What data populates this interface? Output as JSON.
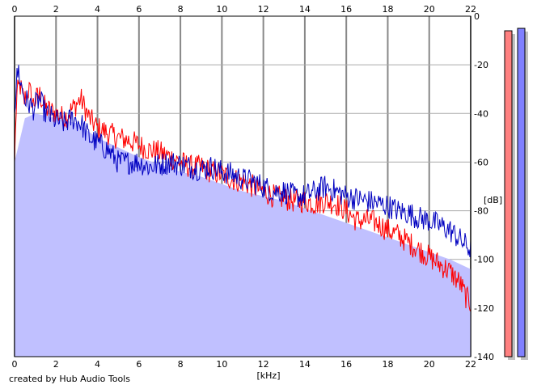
{
  "chart_data": {
    "type": "area",
    "xlabel": "[kHz]",
    "ylabel": "[dB]",
    "xlim": [
      0,
      22
    ],
    "ylim": [
      -140,
      0
    ],
    "x_ticks": [
      0,
      2,
      4,
      6,
      8,
      10,
      12,
      14,
      16,
      18,
      20,
      22
    ],
    "y_ticks": [
      0,
      -20,
      -40,
      -60,
      -80,
      -100,
      -120,
      -140
    ],
    "grid": true,
    "fill_color": "#c0c0ff",
    "series": [
      {
        "color": "#ff0000",
        "points": [
          [
            0,
            -60
          ],
          [
            0.1,
            -33
          ],
          [
            0.25,
            -28
          ],
          [
            0.45,
            -35
          ],
          [
            0.7,
            -30
          ],
          [
            0.9,
            -36
          ],
          [
            1.2,
            -32
          ],
          [
            1.5,
            -38
          ],
          [
            2,
            -40
          ],
          [
            2.4,
            -42
          ],
          [
            2.8,
            -38
          ],
          [
            3.2,
            -34
          ],
          [
            3.6,
            -42
          ],
          [
            4,
            -46
          ],
          [
            4.5,
            -48
          ],
          [
            5,
            -50
          ],
          [
            5.5,
            -51
          ],
          [
            6,
            -53
          ],
          [
            6.5,
            -55
          ],
          [
            7,
            -56
          ],
          [
            7.5,
            -58
          ],
          [
            8,
            -60
          ],
          [
            8.5,
            -62
          ],
          [
            9,
            -62
          ],
          [
            9.5,
            -64
          ],
          [
            10,
            -65
          ],
          [
            10.5,
            -67
          ],
          [
            11,
            -68
          ],
          [
            11.5,
            -70
          ],
          [
            12,
            -72
          ],
          [
            12.5,
            -74
          ],
          [
            13,
            -75
          ],
          [
            13.5,
            -76
          ],
          [
            14,
            -76
          ],
          [
            14.5,
            -77
          ],
          [
            15,
            -76
          ],
          [
            15.5,
            -77
          ],
          [
            16,
            -80
          ],
          [
            16.5,
            -84
          ],
          [
            17,
            -84
          ],
          [
            17.5,
            -85
          ],
          [
            18,
            -88
          ],
          [
            18.5,
            -90
          ],
          [
            19,
            -93
          ],
          [
            19.5,
            -96
          ],
          [
            20,
            -99
          ],
          [
            20.5,
            -102
          ],
          [
            21,
            -105
          ],
          [
            21.5,
            -110
          ],
          [
            21.8,
            -116
          ],
          [
            22,
            -118
          ]
        ]
      },
      {
        "color": "#0000c0",
        "points": [
          [
            0,
            -40
          ],
          [
            0.1,
            -26
          ],
          [
            0.2,
            -22
          ],
          [
            0.3,
            -28
          ],
          [
            0.5,
            -34
          ],
          [
            0.7,
            -36
          ],
          [
            0.9,
            -38
          ],
          [
            1.2,
            -34
          ],
          [
            1.5,
            -40
          ],
          [
            2,
            -43
          ],
          [
            2.4,
            -44
          ],
          [
            2.8,
            -42
          ],
          [
            3.2,
            -44
          ],
          [
            3.6,
            -50
          ],
          [
            4,
            -52
          ],
          [
            4.5,
            -55
          ],
          [
            5,
            -60
          ],
          [
            5.5,
            -60
          ],
          [
            6,
            -60
          ],
          [
            6.5,
            -62
          ],
          [
            7,
            -61
          ],
          [
            7.5,
            -60
          ],
          [
            8,
            -61
          ],
          [
            8.5,
            -62
          ],
          [
            9,
            -63
          ],
          [
            9.5,
            -62
          ],
          [
            10,
            -64
          ],
          [
            10.5,
            -65
          ],
          [
            11,
            -67
          ],
          [
            11.5,
            -68
          ],
          [
            12,
            -70
          ],
          [
            12.5,
            -72
          ],
          [
            13,
            -72
          ],
          [
            13.5,
            -74
          ],
          [
            14,
            -74
          ],
          [
            14.5,
            -72
          ],
          [
            15,
            -70
          ],
          [
            15.5,
            -72
          ],
          [
            16,
            -74
          ],
          [
            16.5,
            -75
          ],
          [
            17,
            -76
          ],
          [
            17.5,
            -77
          ],
          [
            18,
            -78
          ],
          [
            18.5,
            -80
          ],
          [
            19,
            -81
          ],
          [
            19.5,
            -83
          ],
          [
            20,
            -84
          ],
          [
            20.5,
            -86
          ],
          [
            21,
            -88
          ],
          [
            21.5,
            -92
          ],
          [
            22,
            -96
          ]
        ]
      }
    ],
    "fill_outline": [
      [
        0,
        -60
      ],
      [
        0.5,
        -42
      ],
      [
        1,
        -40
      ],
      [
        2,
        -42
      ],
      [
        3,
        -44
      ],
      [
        4,
        -50
      ],
      [
        5,
        -54
      ],
      [
        6,
        -58
      ],
      [
        7,
        -61
      ],
      [
        8,
        -64
      ],
      [
        9,
        -66
      ],
      [
        10,
        -69
      ],
      [
        11,
        -72
      ],
      [
        12,
        -74
      ],
      [
        13,
        -76
      ],
      [
        14,
        -79
      ],
      [
        15,
        -82
      ],
      [
        16,
        -85
      ],
      [
        17,
        -88
      ],
      [
        18,
        -91
      ],
      [
        19,
        -94
      ],
      [
        20,
        -97
      ],
      [
        21,
        -100
      ],
      [
        22,
        -104
      ]
    ],
    "level_meters": [
      {
        "color": "#ff8080",
        "value_db": -6
      },
      {
        "color": "#8080ff",
        "value_db": -5
      }
    ]
  },
  "footer": {
    "credit": "created by Hub Audio Tools"
  }
}
